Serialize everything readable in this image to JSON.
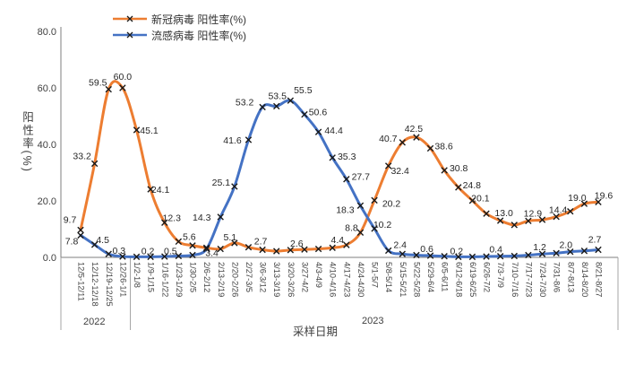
{
  "chart_data": {
    "type": "line",
    "title": "",
    "xlabel": "采样日期",
    "ylabel": "阳性率(%)",
    "ylim": [
      0,
      80
    ],
    "y_ticks": [
      "0.0",
      "20.0",
      "40.0",
      "60.0",
      "80.0"
    ],
    "y_tick_values": [
      0,
      20,
      40,
      60,
      80
    ],
    "grid": false,
    "smooth": true,
    "marker": "x",
    "marker_color": "#1a1a1a",
    "legend_position": "top-inside-left",
    "year_groups": [
      {
        "label": "2022",
        "from": 0,
        "to": 3
      },
      {
        "label": "2023",
        "from": 4,
        "to": 37
      }
    ],
    "categories": [
      "12/5-12/11",
      "12/12-12/18",
      "12/19-12/25",
      "12/26-1/1",
      "1/2-1/8",
      "1/9-1/15",
      "1/16-1/22",
      "1/23-1/29",
      "1/30-2/5",
      "2/6-2/12",
      "2/13-2/19",
      "2/20-2/26",
      "2/27-3/5",
      "3/6-3/12",
      "3/13-3/19",
      "3/20-3/26",
      "3/27-4/2",
      "4/3-4/9",
      "4/10-4/16",
      "4/17-4/23",
      "4/24-4/30",
      "5/1-5/7",
      "5/8-5/14",
      "5/15-5/21",
      "5/22-5/28",
      "5/29-6/4",
      "6/5-6/11",
      "6/12-6/18",
      "6/19-6/25",
      "6/26-7/2",
      "7/3-7/9",
      "7/10-7/16",
      "7/17-7/23",
      "7/24-7/30",
      "7/31-8/6",
      "8/7-8/13",
      "8/14-8/20",
      "8/21-8/27"
    ],
    "series": [
      {
        "name": "新冠病毒 阳性率(%)",
        "color": "#ED7D31",
        "values": [
          9.7,
          33.2,
          59.5,
          60.0,
          45.1,
          24.1,
          12.3,
          5.6,
          4.2,
          3.4,
          3.0,
          5.1,
          3.6,
          2.7,
          2.2,
          2.6,
          2.8,
          3.0,
          3.4,
          4.4,
          8.8,
          20.2,
          32.4,
          40.7,
          42.5,
          38.6,
          30.8,
          24.8,
          20.1,
          15.5,
          13.0,
          11.5,
          12.9,
          13.3,
          14.4,
          16.3,
          19.0,
          19.6
        ],
        "labeled_points": [
          {
            "i": 0,
            "dx": -12,
            "dy": -8
          },
          {
            "i": 1,
            "dx": -14,
            "dy": -5
          },
          {
            "i": 2,
            "dx": -12,
            "dy": -4
          },
          {
            "i": 3,
            "dx": 0,
            "dy": -9
          },
          {
            "i": 4,
            "dx": 14,
            "dy": 4
          },
          {
            "i": 5,
            "dx": 11,
            "dy": 4
          },
          {
            "i": 6,
            "dx": 8,
            "dy": -2
          },
          {
            "i": 7,
            "dx": 12,
            "dy": -2
          },
          {
            "i": 9,
            "dx": 6,
            "dy": 9
          },
          {
            "i": 11,
            "dx": -5,
            "dy": -3
          },
          {
            "i": 13,
            "dx": -2,
            "dy": -6
          },
          {
            "i": 15,
            "dx": 7,
            "dy": -4
          },
          {
            "i": 19,
            "dx": -10,
            "dy": -2
          },
          {
            "i": 20,
            "dx": -10,
            "dy": -2
          },
          {
            "i": 21,
            "dx": 19,
            "dy": 7
          },
          {
            "i": 22,
            "dx": 13,
            "dy": 9
          },
          {
            "i": 23,
            "dx": -16,
            "dy": -1
          },
          {
            "i": 24,
            "dx": -3,
            "dy": -6
          },
          {
            "i": 25,
            "dx": 15,
            "dy": 1
          },
          {
            "i": 26,
            "dx": 16,
            "dy": 1
          },
          {
            "i": 27,
            "dx": 15,
            "dy": 1
          },
          {
            "i": 28,
            "dx": 9,
            "dy": 1
          },
          {
            "i": 30,
            "dx": 4,
            "dy": -5
          },
          {
            "i": 32,
            "dx": 5,
            "dy": -5
          },
          {
            "i": 34,
            "dx": 2,
            "dy": -4
          },
          {
            "i": 36,
            "dx": -8,
            "dy": -3
          },
          {
            "i": 37,
            "dx": 6,
            "dy": -4
          }
        ]
      },
      {
        "name": "流感病毒 阳性率(%)",
        "color": "#4472C4",
        "values": [
          7.8,
          4.5,
          1.2,
          0.3,
          0.2,
          0.2,
          0.3,
          0.5,
          0.8,
          3.0,
          14.3,
          25.1,
          41.6,
          53.2,
          53.5,
          55.5,
          50.6,
          44.4,
          35.3,
          27.7,
          18.3,
          10.2,
          2.4,
          1.2,
          0.8,
          0.6,
          0.4,
          0.2,
          0.2,
          0.3,
          0.4,
          0.5,
          0.8,
          1.2,
          1.5,
          2.0,
          2.3,
          2.7
        ],
        "labeled_points": [
          {
            "i": 0,
            "dx": -10,
            "dy": 10
          },
          {
            "i": 1,
            "dx": 9,
            "dy": -2
          },
          {
            "i": 3,
            "dx": -4,
            "dy": -3
          },
          {
            "i": 5,
            "dx": -3,
            "dy": -3
          },
          {
            "i": 7,
            "dx": -9,
            "dy": -2
          },
          {
            "i": 10,
            "dx": -21,
            "dy": 4
          },
          {
            "i": 11,
            "dx": -15,
            "dy": -1
          },
          {
            "i": 12,
            "dx": -18,
            "dy": 4
          },
          {
            "i": 13,
            "dx": -20,
            "dy": -2
          },
          {
            "i": 14,
            "dx": 1,
            "dy": -8
          },
          {
            "i": 15,
            "dx": 14,
            "dy": -8
          },
          {
            "i": 16,
            "dx": 15,
            "dy": 1
          },
          {
            "i": 17,
            "dx": 17,
            "dy": 2
          },
          {
            "i": 18,
            "dx": 16,
            "dy": 2
          },
          {
            "i": 19,
            "dx": 16,
            "dy": 1
          },
          {
            "i": 20,
            "dx": -17,
            "dy": 8
          },
          {
            "i": 21,
            "dx": 9,
            "dy": -1
          },
          {
            "i": 22,
            "dx": 13,
            "dy": -3
          },
          {
            "i": 25,
            "dx": -4,
            "dy": -4
          },
          {
            "i": 27,
            "dx": -2,
            "dy": -3
          },
          {
            "i": 30,
            "dx": -5,
            "dy": -4
          },
          {
            "i": 33,
            "dx": -3,
            "dy": -4
          },
          {
            "i": 35,
            "dx": -5,
            "dy": -4
          },
          {
            "i": 37,
            "dx": -4,
            "dy": -8
          }
        ]
      }
    ]
  }
}
